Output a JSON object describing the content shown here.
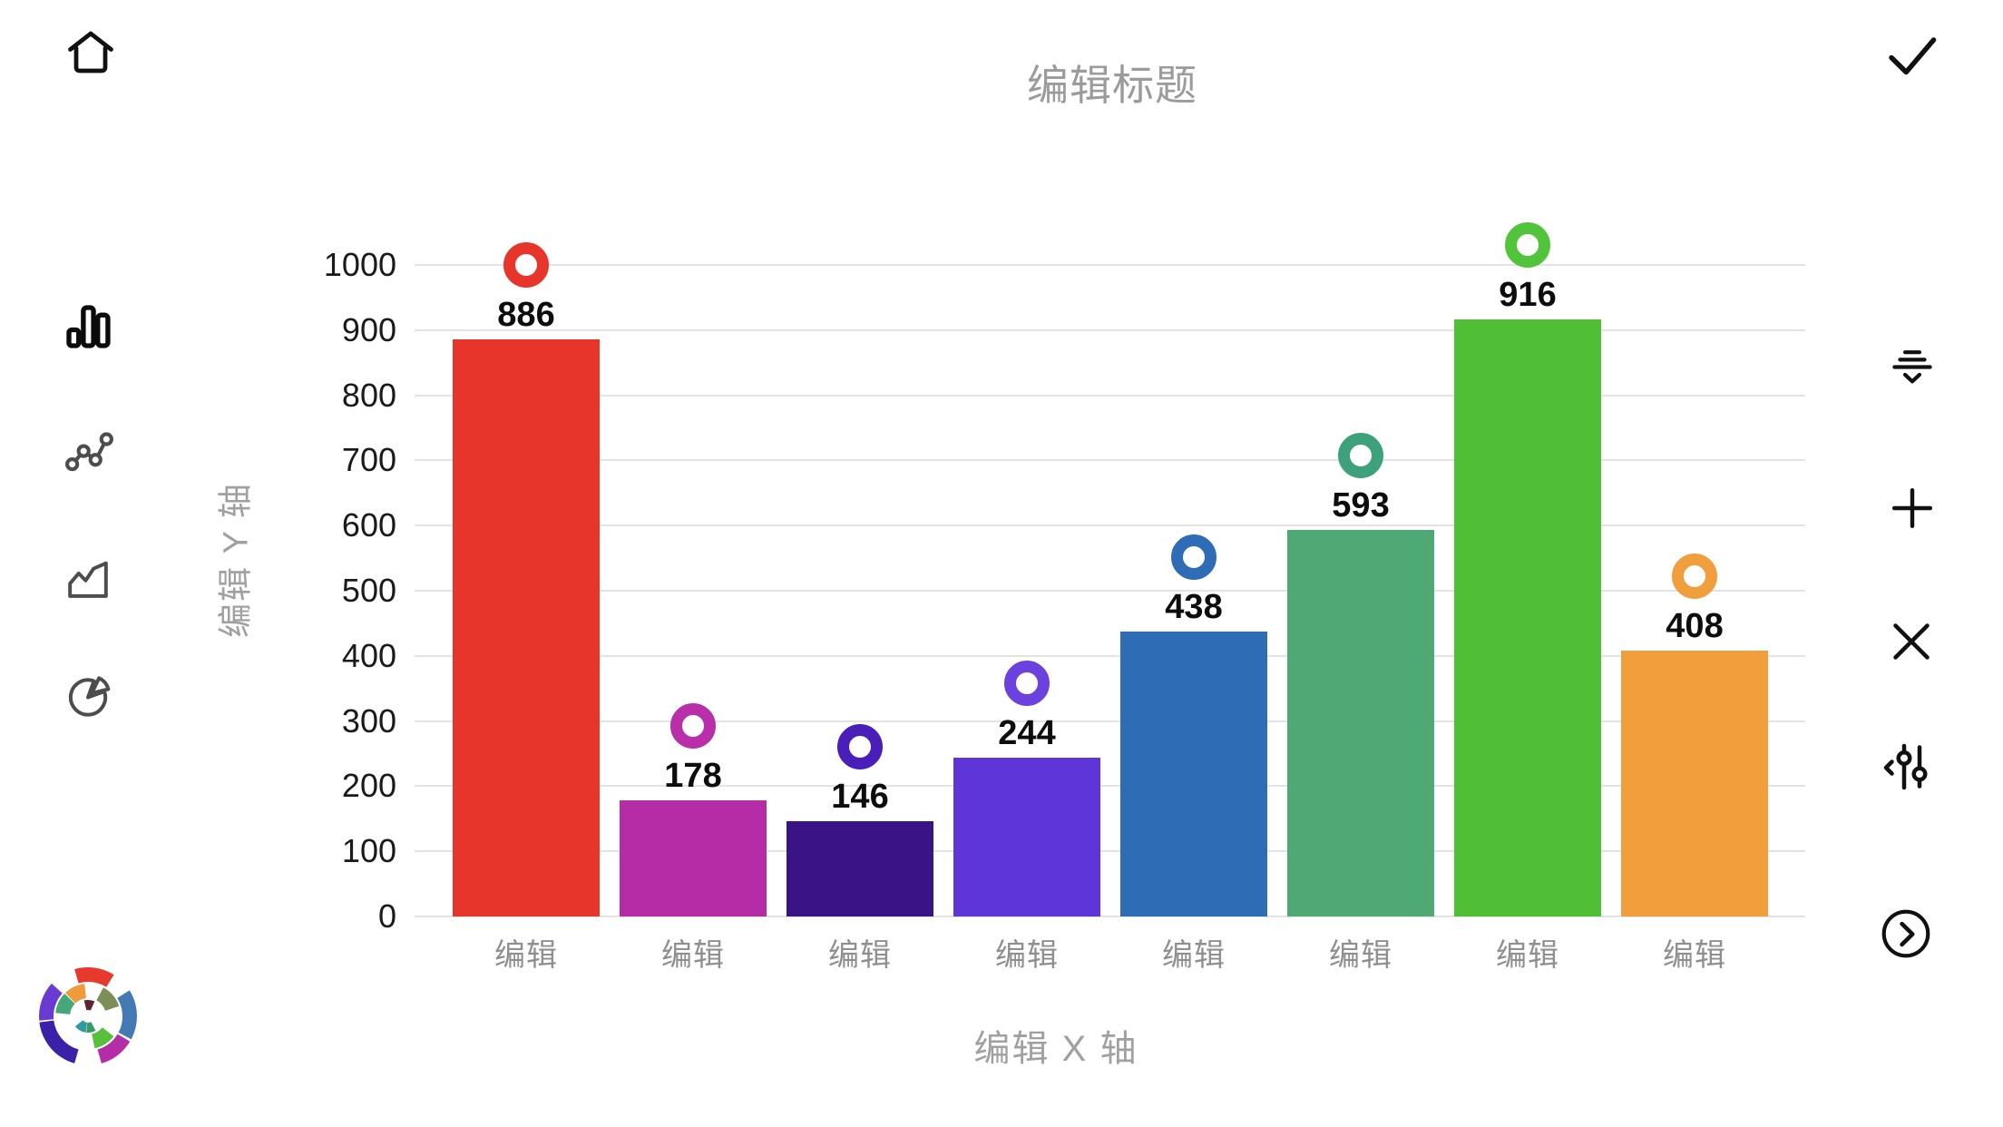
{
  "header": {
    "title": "编辑标题"
  },
  "toolbar_left": {
    "items": [
      {
        "name": "bar-chart-icon",
        "active": true
      },
      {
        "name": "scatter-chart-icon",
        "active": false
      },
      {
        "name": "area-chart-icon",
        "active": false
      },
      {
        "name": "pie-chart-icon",
        "active": false
      }
    ]
  },
  "toolbar_right": {
    "items": [
      {
        "name": "confirm-check-icon"
      },
      {
        "name": "sort-lines-chevron-icon"
      },
      {
        "name": "add-plus-icon"
      },
      {
        "name": "close-x-icon"
      },
      {
        "name": "sliders-settings-icon"
      },
      {
        "name": "next-circle-chevron-icon"
      }
    ]
  },
  "nav": {
    "home": "home-icon"
  },
  "logo": {
    "name": "app-logo-icon",
    "colors": [
      "#e73a2e",
      "#4479b4",
      "#b42da6",
      "#3b21a8",
      "#6a3bd0",
      "#7d8f56",
      "#58c03c",
      "#ef9b3c",
      "#45a87a",
      "#5e2330",
      "#2f9ba1",
      "#3a9a64"
    ]
  },
  "chart_data": {
    "type": "bar",
    "title": "编辑标题",
    "xlabel": "编辑 X 轴",
    "ylabel": "编辑 Y 轴",
    "categories": [
      "编辑",
      "编辑",
      "编辑",
      "编辑",
      "编辑",
      "编辑",
      "编辑",
      "编辑"
    ],
    "values": [
      886,
      178,
      146,
      244,
      438,
      593,
      916,
      408
    ],
    "bar_colors": [
      "#e7352c",
      "#b42da6",
      "#3a1386",
      "#5d35d9",
      "#2e6cb5",
      "#4fa974",
      "#50bf36",
      "#f19e3d"
    ],
    "marker_colors": [
      "#e7352c",
      "#b92fa9",
      "#4a1eb8",
      "#6b42dd",
      "#2e6cb5",
      "#3da27b",
      "#52c43c",
      "#f19e3d"
    ],
    "marker": "ring",
    "ylim": [
      0,
      1000
    ],
    "ytick_step": 100,
    "grid": true,
    "legend": "none"
  },
  "style_colors": {
    "grid": "#e3e3e3",
    "tick_text": "#1a1a1a",
    "value_text": "#0d0d0d",
    "muted_text": "#9b9b9b"
  }
}
